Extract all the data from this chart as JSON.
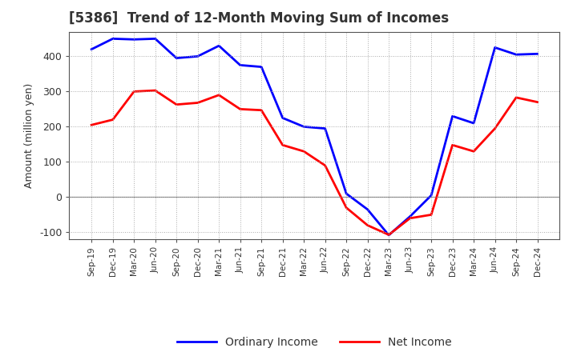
{
  "title": "[5386]  Trend of 12-Month Moving Sum of Incomes",
  "ylabel": "Amount (million yen)",
  "xlabels": [
    "Sep-19",
    "Dec-19",
    "Mar-20",
    "Jun-20",
    "Sep-20",
    "Dec-20",
    "Mar-21",
    "Jun-21",
    "Sep-21",
    "Dec-21",
    "Mar-22",
    "Jun-22",
    "Sep-22",
    "Dec-22",
    "Mar-23",
    "Jun-23",
    "Sep-23",
    "Dec-23",
    "Mar-24",
    "Jun-24",
    "Sep-24",
    "Dec-24"
  ],
  "ordinary_income": [
    420,
    450,
    448,
    450,
    395,
    400,
    430,
    375,
    370,
    225,
    200,
    195,
    10,
    -35,
    -108,
    -55,
    5,
    230,
    210,
    425,
    405,
    407
  ],
  "net_income": [
    205,
    220,
    300,
    303,
    263,
    268,
    290,
    250,
    247,
    148,
    130,
    90,
    -30,
    -80,
    -107,
    -60,
    -50,
    148,
    130,
    195,
    283,
    270
  ],
  "ordinary_color": "#0000ff",
  "net_color": "#ff0000",
  "ylim": [
    -120,
    470
  ],
  "yticks": [
    -100,
    0,
    100,
    200,
    300,
    400
  ],
  "background_color": "#ffffff",
  "grid_color": "#aaaaaa",
  "title_color": "#333333",
  "spine_color": "#555555",
  "tick_color": "#333333"
}
